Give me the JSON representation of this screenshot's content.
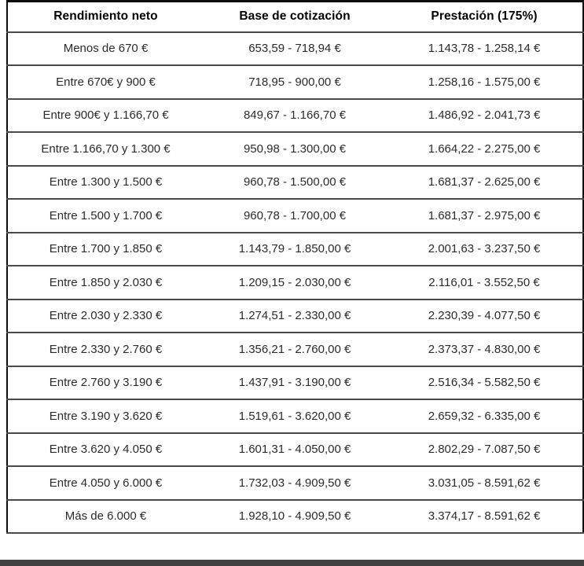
{
  "table": {
    "columns": [
      "Rendimiento neto",
      "Base de cotización",
      "Prestación (175%)"
    ],
    "rows": [
      [
        "Menos de 670 €",
        "653,59 - 718,94 €",
        "1.143,78 - 1.258,14 €"
      ],
      [
        "Entre 670€ y 900 €",
        "718,95 - 900,00 €",
        "1.258,16 - 1.575,00 €"
      ],
      [
        "Entre 900€ y 1.166,70 €",
        "849,67 - 1.166,70 €",
        "1.486,92 - 2.041,73 €"
      ],
      [
        "Entre 1.166,70 y 1.300 €",
        "950,98 - 1.300,00 €",
        "1.664,22 - 2.275,00 €"
      ],
      [
        "Entre 1.300 y 1.500 €",
        "960,78 - 1.500,00 €",
        "1.681,37 - 2.625,00 €"
      ],
      [
        "Entre 1.500 y 1.700 €",
        "960,78 - 1.700,00 €",
        "1.681,37 - 2.975,00 €"
      ],
      [
        "Entre 1.700 y 1.850 €",
        "1.143,79 - 1.850,00 €",
        "2.001,63 - 3.237,50 €"
      ],
      [
        "Entre 1.850 y 2.030 €",
        "1.209,15 - 2.030,00 €",
        "2.116,01 - 3.552,50 €"
      ],
      [
        "Entre 2.030 y 2.330 €",
        "1.274,51 - 2.330,00 €",
        "2.230,39 - 4.077,50 €"
      ],
      [
        "Entre 2.330 y 2.760 €",
        "1.356,21 - 2.760,00 €",
        "2.373,37 - 4.830,00 €"
      ],
      [
        "Entre 2.760 y 3.190 €",
        "1.437,91 - 3.190,00 €",
        "2.516,34 - 5.582,50 €"
      ],
      [
        "Entre 3.190 y 3.620 €",
        "1.519,61 - 3.620,00 €",
        "2.659,32 - 6.335,00 €"
      ],
      [
        "Entre 3.620 y 4.050 €",
        "1.601,31 - 4.050,00 €",
        "2.802,29 - 7.087,50 €"
      ],
      [
        "Entre 4.050 y 6.000 €",
        "1.732,03 - 4.909,50 €",
        "3.031,05 - 8.591,62 €"
      ],
      [
        "Más de 6.000 €",
        "1.928,10 - 4.909,50 €",
        "3.374,17 - 8.591,62 €"
      ]
    ]
  },
  "chart_data": {
    "type": "table",
    "title": "",
    "columns": [
      "Rendimiento neto",
      "Base de cotización",
      "Prestación (175%)"
    ],
    "rows": [
      [
        "Menos de 670 €",
        "653,59 - 718,94 €",
        "1.143,78 - 1.258,14 €"
      ],
      [
        "Entre 670€ y 900 €",
        "718,95 - 900,00 €",
        "1.258,16 - 1.575,00 €"
      ],
      [
        "Entre 900€ y 1.166,70 €",
        "849,67 - 1.166,70 €",
        "1.486,92 - 2.041,73 €"
      ],
      [
        "Entre 1.166,70 y 1.300 €",
        "950,98 - 1.300,00 €",
        "1.664,22 - 2.275,00 €"
      ],
      [
        "Entre 1.300 y 1.500 €",
        "960,78 - 1.500,00 €",
        "1.681,37 - 2.625,00 €"
      ],
      [
        "Entre 1.500 y 1.700 €",
        "960,78 - 1.700,00 €",
        "1.681,37 - 2.975,00 €"
      ],
      [
        "Entre 1.700 y 1.850 €",
        "1.143,79 - 1.850,00 €",
        "2.001,63 - 3.237,50 €"
      ],
      [
        "Entre 1.850 y 2.030 €",
        "1.209,15 - 2.030,00 €",
        "2.116,01 - 3.552,50 €"
      ],
      [
        "Entre 2.030 y 2.330 €",
        "1.274,51 - 2.330,00 €",
        "2.230,39 - 4.077,50 €"
      ],
      [
        "Entre 2.330 y 2.760 €",
        "1.356,21 - 2.760,00 €",
        "2.373,37 - 4.830,00 €"
      ],
      [
        "Entre 2.760 y 3.190 €",
        "1.437,91 - 3.190,00 €",
        "2.516,34 - 5.582,50 €"
      ],
      [
        "Entre 3.190 y 3.620 €",
        "1.519,61 - 3.620,00 €",
        "2.659,32 - 6.335,00 €"
      ],
      [
        "Entre 3.620 y 4.050 €",
        "1.601,31 - 4.050,00 €",
        "2.802,29 - 7.087,50 €"
      ],
      [
        "Entre 4.050 y 6.000 €",
        "1.732,03 - 4.909,50 €",
        "3.031,05 - 8.591,62 €"
      ],
      [
        "Más de 6.000 €",
        "1.928,10 - 4.909,50 €",
        "3.374,17 - 8.591,62 €"
      ]
    ]
  },
  "colors": {
    "outer_border": "#0d0d0d",
    "row_separator": "#4a4a4a",
    "header_text": "#000000",
    "body_text": "#2b2b2b",
    "bottom_bar": "#414141",
    "background": "#ffffff"
  }
}
